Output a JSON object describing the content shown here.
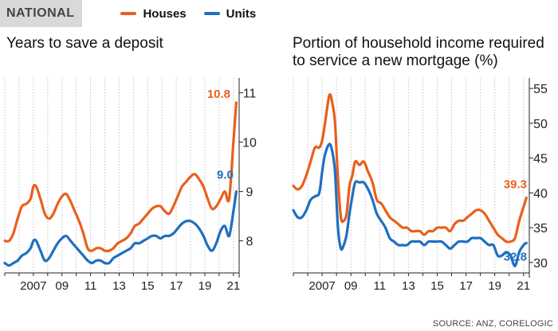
{
  "header": {
    "tag": "NATIONAL",
    "legend": [
      {
        "label": "Houses",
        "color": "#e8601c"
      },
      {
        "label": "Units",
        "color": "#1f6fc0"
      }
    ]
  },
  "source": "SOURCE: ANZ, CORELOGIC",
  "chart_data": [
    {
      "type": "line",
      "title": "Years to save a deposit",
      "xlabel": "",
      "ylabel": "",
      "xlim": [
        2005.0,
        2021.4
      ],
      "ylim": [
        7.35,
        11.3
      ],
      "yticks": [
        8,
        9,
        10,
        11
      ],
      "xtick_labels": [
        {
          "x": 2007,
          "label": "2007"
        },
        {
          "x": 2009,
          "label": "09"
        },
        {
          "x": 2011,
          "label": "11"
        },
        {
          "x": 2013,
          "label": "13"
        },
        {
          "x": 2015,
          "label": "15"
        },
        {
          "x": 2017,
          "label": "17"
        },
        {
          "x": 2019,
          "label": "19"
        },
        {
          "x": 2021,
          "label": "21"
        }
      ],
      "grid": "vertical dotted",
      "y_axis_side": "right",
      "series": [
        {
          "name": "Houses",
          "color": "#e8601c",
          "x": [
            2005.0,
            2005.3,
            2005.6,
            2005.9,
            2006.2,
            2006.5,
            2006.8,
            2007.0,
            2007.2,
            2007.5,
            2007.8,
            2008.1,
            2008.4,
            2008.7,
            2009.0,
            2009.3,
            2009.6,
            2009.9,
            2010.2,
            2010.5,
            2010.8,
            2011.1,
            2011.4,
            2011.7,
            2012.0,
            2012.3,
            2012.6,
            2012.9,
            2013.2,
            2013.5,
            2013.8,
            2014.1,
            2014.4,
            2014.7,
            2015.0,
            2015.3,
            2015.6,
            2015.9,
            2016.2,
            2016.5,
            2016.8,
            2017.1,
            2017.4,
            2017.7,
            2018.0,
            2018.3,
            2018.6,
            2018.9,
            2019.2,
            2019.5,
            2019.8,
            2020.1,
            2020.4,
            2020.7,
            2021.0,
            2021.2
          ],
          "values": [
            8.0,
            8.0,
            8.15,
            8.45,
            8.7,
            8.75,
            8.85,
            9.1,
            9.1,
            8.85,
            8.55,
            8.45,
            8.55,
            8.75,
            8.9,
            8.95,
            8.8,
            8.6,
            8.4,
            8.15,
            7.85,
            7.8,
            7.85,
            7.85,
            7.8,
            7.8,
            7.85,
            7.95,
            8.0,
            8.05,
            8.15,
            8.3,
            8.35,
            8.45,
            8.55,
            8.65,
            8.7,
            8.7,
            8.6,
            8.55,
            8.7,
            8.9,
            9.1,
            9.2,
            9.3,
            9.35,
            9.25,
            9.1,
            8.85,
            8.65,
            8.7,
            8.85,
            9.0,
            8.85,
            10.0,
            10.8
          ],
          "end_label": "10.8"
        },
        {
          "name": "Units",
          "color": "#1f6fc0",
          "x": [
            2005.0,
            2005.3,
            2005.6,
            2005.9,
            2006.2,
            2006.5,
            2006.8,
            2007.0,
            2007.2,
            2007.5,
            2007.8,
            2008.1,
            2008.4,
            2008.7,
            2009.0,
            2009.3,
            2009.6,
            2009.9,
            2010.2,
            2010.5,
            2010.8,
            2011.1,
            2011.4,
            2011.7,
            2012.0,
            2012.3,
            2012.6,
            2012.9,
            2013.2,
            2013.5,
            2013.8,
            2014.1,
            2014.4,
            2014.7,
            2015.0,
            2015.3,
            2015.6,
            2015.9,
            2016.2,
            2016.5,
            2016.8,
            2017.1,
            2017.4,
            2017.7,
            2018.0,
            2018.3,
            2018.6,
            2018.9,
            2019.2,
            2019.5,
            2019.8,
            2020.1,
            2020.4,
            2020.7,
            2021.0,
            2021.2
          ],
          "values": [
            7.55,
            7.5,
            7.55,
            7.6,
            7.7,
            7.75,
            7.85,
            8.0,
            8.0,
            7.8,
            7.6,
            7.65,
            7.8,
            7.95,
            8.05,
            8.1,
            8.0,
            7.9,
            7.8,
            7.7,
            7.6,
            7.55,
            7.6,
            7.6,
            7.55,
            7.55,
            7.65,
            7.7,
            7.75,
            7.8,
            7.85,
            7.95,
            7.95,
            8.0,
            8.05,
            8.1,
            8.1,
            8.05,
            8.1,
            8.1,
            8.15,
            8.25,
            8.35,
            8.4,
            8.4,
            8.35,
            8.25,
            8.1,
            7.9,
            7.8,
            7.95,
            8.2,
            8.3,
            8.1,
            8.6,
            9.0
          ],
          "end_label": "9.0"
        }
      ]
    },
    {
      "type": "line",
      "title": "Portion of household income required to service a new mortgage (%)",
      "xlabel": "",
      "ylabel": "",
      "xlim": [
        2005.0,
        2021.4
      ],
      "ylim": [
        28.5,
        56.5
      ],
      "yticks": [
        30,
        35,
        40,
        45,
        50,
        55
      ],
      "xtick_labels": [
        {
          "x": 2007,
          "label": "2007"
        },
        {
          "x": 2009,
          "label": "09"
        },
        {
          "x": 2011,
          "label": "11"
        },
        {
          "x": 2013,
          "label": "13"
        },
        {
          "x": 2015,
          "label": "15"
        },
        {
          "x": 2017,
          "label": "17"
        },
        {
          "x": 2019,
          "label": "19"
        },
        {
          "x": 2021,
          "label": "21"
        }
      ],
      "grid": "vertical dotted",
      "y_axis_side": "right",
      "series": [
        {
          "name": "Houses",
          "color": "#e8601c",
          "x": [
            2005.0,
            2005.3,
            2005.6,
            2005.9,
            2006.2,
            2006.5,
            2006.8,
            2007.0,
            2007.2,
            2007.5,
            2007.7,
            2007.9,
            2008.1,
            2008.3,
            2008.5,
            2008.7,
            2008.9,
            2009.1,
            2009.3,
            2009.6,
            2009.9,
            2010.2,
            2010.5,
            2010.8,
            2011.1,
            2011.4,
            2011.7,
            2012.0,
            2012.3,
            2012.6,
            2012.9,
            2013.2,
            2013.5,
            2013.8,
            2014.1,
            2014.4,
            2014.7,
            2015.0,
            2015.3,
            2015.6,
            2015.9,
            2016.2,
            2016.5,
            2016.8,
            2017.1,
            2017.4,
            2017.7,
            2018.0,
            2018.3,
            2018.6,
            2018.9,
            2019.2,
            2019.5,
            2019.8,
            2020.1,
            2020.4,
            2020.7,
            2021.0,
            2021.2
          ],
          "values": [
            41.0,
            40.5,
            41.0,
            42.5,
            44.5,
            46.5,
            46.5,
            47.5,
            50.0,
            54.0,
            53.0,
            50.0,
            42.0,
            36.5,
            36.0,
            37.0,
            41.0,
            42.5,
            44.5,
            44.0,
            44.5,
            43.0,
            41.5,
            39.0,
            38.5,
            37.5,
            36.5,
            36.0,
            35.5,
            35.0,
            35.0,
            34.5,
            34.5,
            34.5,
            34.0,
            34.5,
            34.5,
            35.0,
            35.0,
            35.0,
            34.5,
            35.5,
            36.0,
            36.0,
            36.5,
            37.0,
            37.5,
            37.5,
            37.0,
            36.0,
            35.0,
            34.0,
            33.5,
            33.0,
            33.0,
            33.5,
            36.0,
            38.0,
            39.3
          ],
          "end_label": "39.3"
        },
        {
          "name": "Units",
          "color": "#1f6fc0",
          "x": [
            2005.0,
            2005.3,
            2005.6,
            2005.9,
            2006.2,
            2006.5,
            2006.8,
            2007.0,
            2007.2,
            2007.5,
            2007.7,
            2007.9,
            2008.1,
            2008.3,
            2008.5,
            2008.7,
            2008.9,
            2009.1,
            2009.3,
            2009.6,
            2009.9,
            2010.2,
            2010.5,
            2010.8,
            2011.1,
            2011.4,
            2011.7,
            2012.0,
            2012.3,
            2012.6,
            2012.9,
            2013.2,
            2013.5,
            2013.8,
            2014.1,
            2014.4,
            2014.7,
            2015.0,
            2015.3,
            2015.6,
            2015.9,
            2016.2,
            2016.5,
            2016.8,
            2017.1,
            2017.4,
            2017.7,
            2018.0,
            2018.3,
            2018.6,
            2018.9,
            2019.2,
            2019.5,
            2019.8,
            2020.1,
            2020.4,
            2020.7,
            2021.0,
            2021.2
          ],
          "values": [
            37.5,
            36.5,
            36.5,
            37.5,
            39.0,
            39.5,
            40.0,
            43.0,
            45.5,
            47.0,
            46.0,
            43.0,
            35.0,
            32.0,
            32.5,
            34.0,
            37.0,
            39.5,
            41.5,
            41.5,
            41.5,
            40.5,
            39.0,
            37.0,
            36.0,
            35.0,
            33.5,
            33.0,
            32.5,
            32.5,
            32.5,
            33.0,
            33.0,
            33.0,
            32.5,
            33.0,
            33.0,
            33.0,
            33.0,
            32.5,
            32.0,
            32.5,
            33.0,
            33.0,
            33.0,
            33.5,
            33.5,
            33.5,
            33.0,
            32.5,
            32.5,
            31.0,
            31.0,
            31.5,
            31.0,
            29.5,
            31.5,
            32.5,
            32.8
          ],
          "end_label": "32.8"
        }
      ]
    }
  ]
}
